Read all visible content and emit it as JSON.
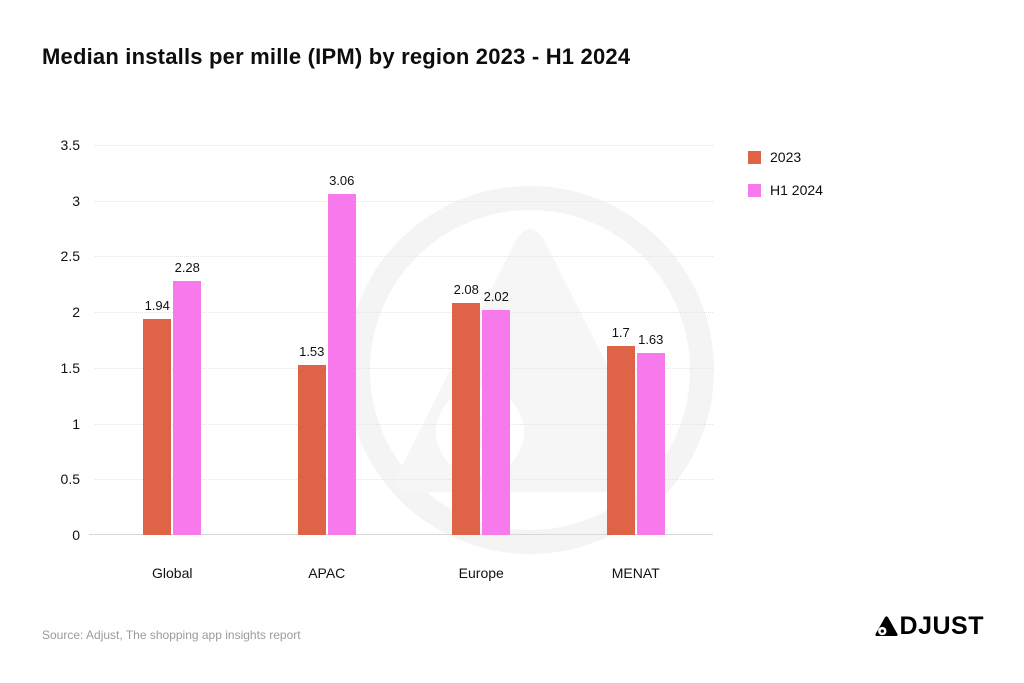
{
  "title": "Median installs per mille (IPM) by region 2023 - H1 2024",
  "footer": {
    "source": "Source: Adjust, The shopping app insights report",
    "brand": "ADJUST"
  },
  "colors": {
    "series_2023": "#df6347",
    "series_h1_2024": "#f779eb",
    "axis_text": "#111111",
    "gridline": "#e4e4e4",
    "source_text": "#9b9b9b"
  },
  "chart_data": {
    "type": "bar",
    "title": "Median installs per mille (IPM) by region 2023 - H1 2024",
    "categories": [
      "Global",
      "APAC",
      "Europe",
      "MENAT"
    ],
    "series": [
      {
        "name": "2023",
        "color": "#df6347",
        "values": [
          1.94,
          1.53,
          2.08,
          1.7
        ],
        "labels": [
          "1.94",
          "1.53",
          "2.08",
          "1.7"
        ]
      },
      {
        "name": "H1 2024",
        "color": "#f779eb",
        "values": [
          2.28,
          3.06,
          2.02,
          1.63
        ],
        "labels": [
          "2.28",
          "3.06",
          "2.02",
          "1.63"
        ]
      }
    ],
    "xlabel": "",
    "ylabel": "",
    "ylim": [
      0,
      3.5
    ],
    "yticks": [
      0,
      0.5,
      1,
      1.5,
      2,
      2.5,
      3,
      3.5
    ],
    "grid": "dotted-horizontal",
    "legend_position": "top-right",
    "value_labels": true
  }
}
